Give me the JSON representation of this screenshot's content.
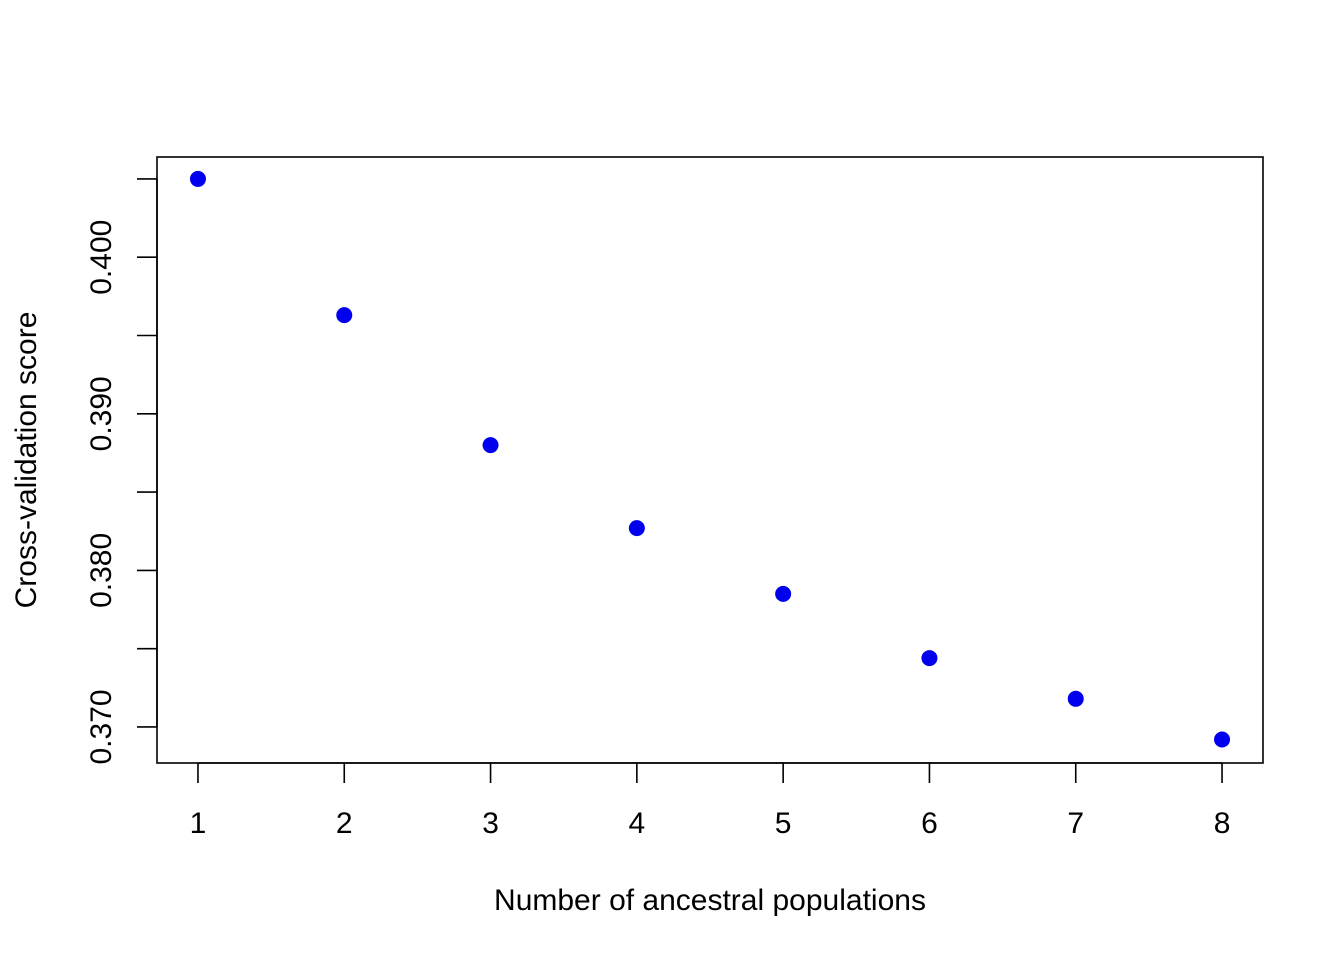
{
  "chart_data": {
    "type": "scatter",
    "title": "",
    "xlabel": "Number of ancestral populations",
    "ylabel": "Cross-validation score",
    "xlim": [
      0.72,
      8.28
    ],
    "ylim": [
      0.3677,
      0.4064
    ],
    "x_ticks": [
      1,
      2,
      3,
      4,
      5,
      6,
      7,
      8
    ],
    "x_tick_labels": [
      "1",
      "2",
      "3",
      "4",
      "5",
      "6",
      "7",
      "8"
    ],
    "y_ticks": [
      0.37,
      0.375,
      0.38,
      0.385,
      0.39,
      0.395,
      0.4,
      0.405
    ],
    "y_tick_labels": [
      "0.370",
      "",
      "0.380",
      "",
      "0.390",
      "",
      "0.400",
      ""
    ],
    "grid": false,
    "legend": "none",
    "point_color": "#0000ee",
    "series": [
      {
        "x": [
          1,
          2,
          3,
          4,
          5,
          6,
          7,
          8
        ],
        "y": [
          0.405,
          0.3963,
          0.388,
          0.3827,
          0.3785,
          0.3744,
          0.3718,
          0.3692
        ]
      }
    ]
  }
}
